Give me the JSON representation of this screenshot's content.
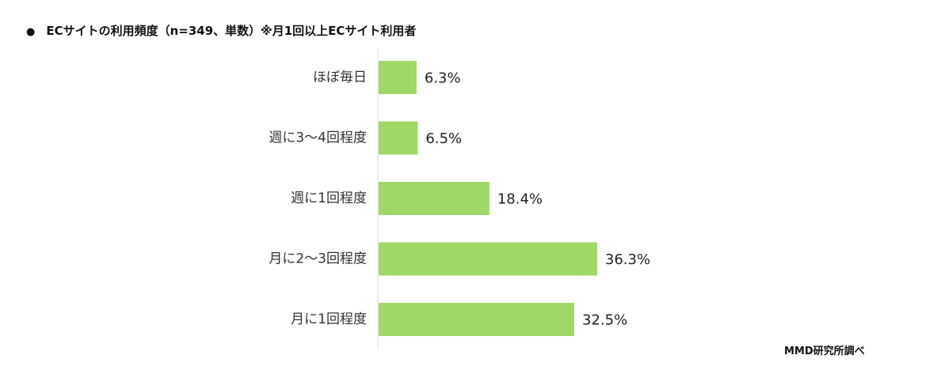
{
  "title": "ECサイトの利用頻度（n=349、単数）※月1回以上ECサイト利用者",
  "bullet": "●",
  "source": "MMD研究所調べ",
  "colors": {
    "bar": "#9fd866",
    "axis": "#d9d9d9"
  },
  "chart_data": {
    "type": "bar",
    "orientation": "horizontal",
    "title": "ECサイトの利用頻度（n=349、単数）※月1回以上ECサイト利用者",
    "categories": [
      "ほぼ毎日",
      "週に3〜4回程度",
      "週に1回程度",
      "月に2〜3回程度",
      "月に1回程度"
    ],
    "values": [
      6.3,
      6.5,
      18.4,
      36.3,
      32.5
    ],
    "value_labels": [
      "6.3%",
      "6.5%",
      "18.4%",
      "36.3%",
      "32.5%"
    ],
    "unit": "%",
    "grid": false,
    "legend": "none"
  }
}
